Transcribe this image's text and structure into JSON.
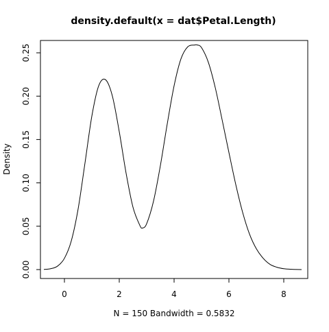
{
  "chart_data": {
    "type": "line",
    "title": "density.default(x = dat$Petal.Length)",
    "xlabel": "N = 150   Bandwidth = 0.5832",
    "ylabel": "Density",
    "xlim": [
      -0.75,
      8.65
    ],
    "ylim": [
      0.0,
      0.27
    ],
    "x_ticks": [
      "0",
      "2",
      "4",
      "6",
      "8"
    ],
    "y_ticks": [
      "0.00",
      "0.05",
      "0.10",
      "0.15",
      "0.20",
      "0.25"
    ],
    "grid": false,
    "legend": "none",
    "series": [
      {
        "x": [
          -0.75,
          -0.5,
          -0.25,
          0,
          0.25,
          0.5,
          0.75,
          1,
          1.25,
          1.5,
          1.75,
          2,
          2.25,
          2.5,
          2.75,
          2.85,
          3,
          3.25,
          3.5,
          3.75,
          4,
          4.25,
          4.5,
          4.75,
          4.85,
          5,
          5.25,
          5.5,
          5.75,
          6,
          6.25,
          6.5,
          6.75,
          7,
          7.25,
          7.5,
          7.75,
          8,
          8.25,
          8.5,
          8.65
        ],
        "y": [
          0.0002,
          0.001,
          0.004,
          0.013,
          0.033,
          0.07,
          0.123,
          0.177,
          0.212,
          0.219,
          0.2,
          0.159,
          0.111,
          0.072,
          0.051,
          0.048,
          0.053,
          0.079,
          0.12,
          0.168,
          0.212,
          0.243,
          0.257,
          0.259,
          0.259,
          0.256,
          0.239,
          0.21,
          0.173,
          0.135,
          0.098,
          0.066,
          0.041,
          0.024,
          0.013,
          0.006,
          0.0027,
          0.001,
          0.0004,
          0.0001,
          3e-05
        ],
        "color": "#000000"
      }
    ]
  }
}
